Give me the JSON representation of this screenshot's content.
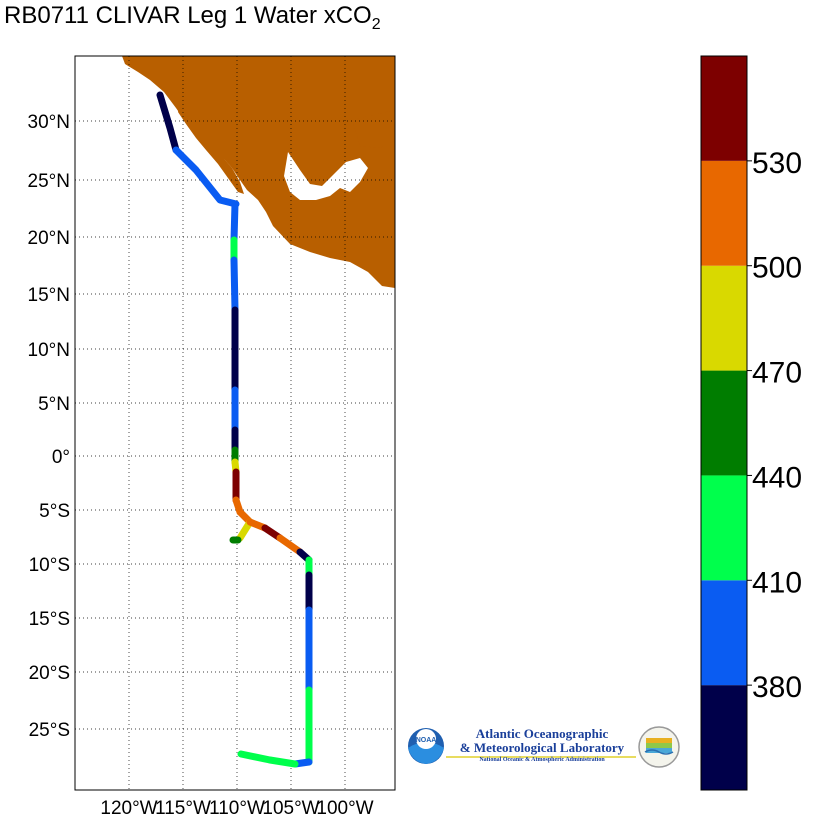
{
  "title": {
    "main": "RB0711 CLIVAR Leg 1 Water xCO",
    "sub": "2"
  },
  "map": {
    "lat_labels": [
      "30°N",
      "25°N",
      "20°N",
      "15°N",
      "10°N",
      "5°N",
      "0°",
      "5°S",
      "10°S",
      "15°S",
      "20°S",
      "25°S"
    ],
    "lon_labels": [
      "120°W",
      "115°W",
      "110°W",
      "105°W",
      "100°W"
    ],
    "land_color": "#b85f00",
    "grid": "dotted"
  },
  "colorbar": {
    "ticks": [
      "380",
      "410",
      "440",
      "470",
      "500",
      "530"
    ],
    "colors": [
      "#00004a",
      "#0a5cf2",
      "#00ff4c",
      "#007d00",
      "#d9d900",
      "#e86800",
      "#7d0000"
    ]
  },
  "logo": {
    "line1": "Atlantic Oceanographic",
    "line2": "& Meteorological Laboratory",
    "line3": "National Oceanic & Atmospheric Administration",
    "badge": "NOAA"
  }
}
